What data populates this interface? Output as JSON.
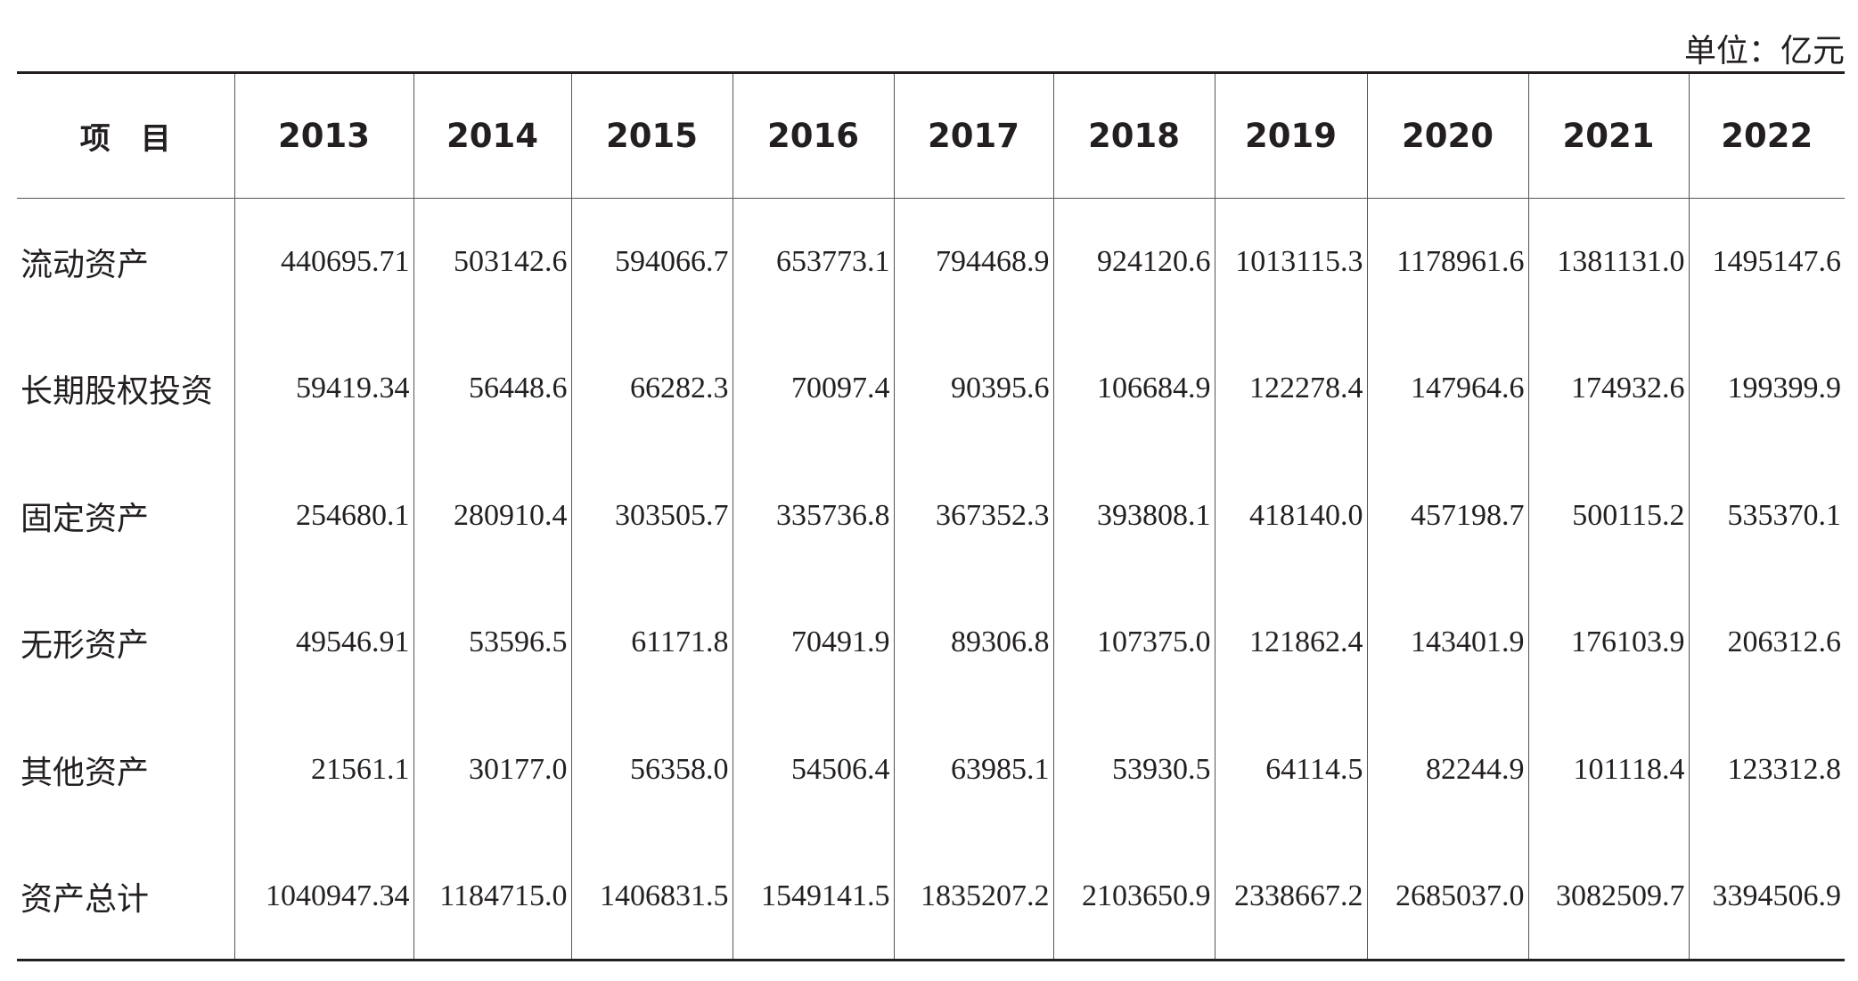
{
  "unit": "单位：亿元",
  "table": {
    "header": [
      "项　目",
      "2013",
      "2014",
      "2015",
      "2016",
      "2017",
      "2018",
      "2019",
      "2020",
      "2021",
      "2022"
    ],
    "rows": [
      [
        "流动资产",
        "440695.71",
        "503142.6",
        "594066.7",
        "653773.1",
        "794468.9",
        "924120.6",
        "1013115.3",
        "1178961.6",
        "1381131.0",
        "1495147.6"
      ],
      [
        "长期股权投资",
        "59419.34",
        "56448.6",
        "66282.3",
        "70097.4",
        "90395.6",
        "106684.9",
        "122278.4",
        "147964.6",
        "174932.6",
        "199399.9"
      ],
      [
        "固定资产",
        "254680.1",
        "280910.4",
        "303505.7",
        "335736.8",
        "367352.3",
        "393808.1",
        "418140.0",
        "457198.7",
        "500115.2",
        "535370.1"
      ],
      [
        "无形资产",
        "49546.91",
        "53596.5",
        "61171.8",
        "70491.9",
        "89306.8",
        "107375.0",
        "121862.4",
        "143401.9",
        "176103.9",
        "206312.6"
      ],
      [
        "其他资产",
        "21561.1",
        "30177.0",
        "56358.0",
        "54506.4",
        "63985.1",
        "53930.5",
        "64114.5",
        "82244.9",
        "101118.4",
        "123312.8"
      ],
      [
        "资产总计",
        "1040947.34",
        "1184715.0",
        "1406831.5",
        "1549141.5",
        "1835207.2",
        "2103650.9",
        "2338667.2",
        "2685037.0",
        "3082509.7",
        "3394506.9"
      ]
    ]
  }
}
